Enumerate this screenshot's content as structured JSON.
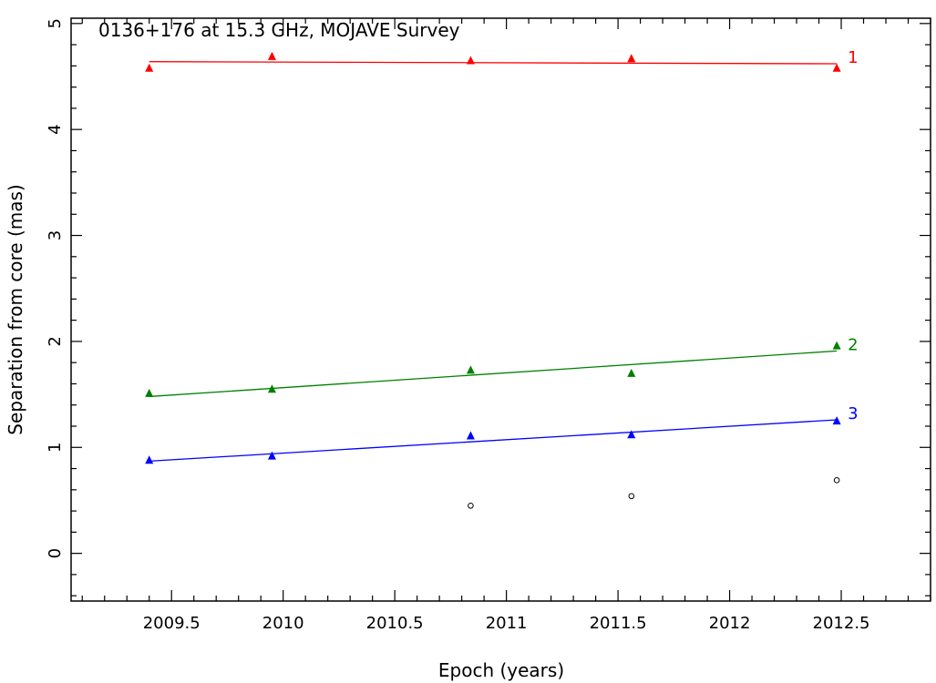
{
  "chart_data": {
    "type": "scatter",
    "title": "0136+176 at 15.3 GHz, MOJAVE Survey",
    "xlabel": "Epoch (years)",
    "ylabel": "Separation from core (mas)",
    "xlim": [
      2009.05,
      2012.9
    ],
    "ylim": [
      -0.45,
      5.05
    ],
    "x_ticks": [
      2009.5,
      2010,
      2010.5,
      2011,
      2011.5,
      2012,
      2012.5
    ],
    "x_tick_labels": [
      "2009.5",
      "2010",
      "2010.5",
      "2011",
      "2011.5",
      "2012",
      "2012.5"
    ],
    "y_ticks": [
      0,
      1,
      2,
      3,
      4,
      5
    ],
    "y_tick_labels": [
      "0",
      "1",
      "2",
      "3",
      "4",
      "5"
    ],
    "grid": false,
    "legend": "none",
    "series": [
      {
        "name": "1",
        "color": "#ff0000",
        "marker": "filled-triangle",
        "x": [
          2009.4,
          2009.95,
          2010.84,
          2011.56,
          2012.48
        ],
        "y": [
          4.58,
          4.69,
          4.65,
          4.67,
          4.58
        ],
        "fit": [
          [
            2009.4,
            4.64
          ],
          [
            2012.48,
            4.62
          ]
        ]
      },
      {
        "name": "2",
        "color": "#008000",
        "marker": "filled-triangle",
        "x": [
          2009.4,
          2009.95,
          2010.84,
          2011.56,
          2012.48
        ],
        "y": [
          1.51,
          1.55,
          1.73,
          1.7,
          1.96
        ],
        "fit": [
          [
            2009.4,
            1.48
          ],
          [
            2012.48,
            1.91
          ]
        ]
      },
      {
        "name": "3",
        "color": "#0000ff",
        "marker": "filled-triangle",
        "x": [
          2009.4,
          2009.95,
          2010.84,
          2011.56,
          2012.48
        ],
        "y": [
          0.88,
          0.92,
          1.11,
          1.12,
          1.25
        ],
        "fit": [
          [
            2009.4,
            0.87
          ],
          [
            2012.48,
            1.26
          ]
        ]
      },
      {
        "color": "#000000",
        "marker": "open-circle",
        "x": [
          2010.84,
          2011.56,
          2012.48
        ],
        "y": [
          0.45,
          0.54,
          0.69
        ]
      }
    ]
  }
}
